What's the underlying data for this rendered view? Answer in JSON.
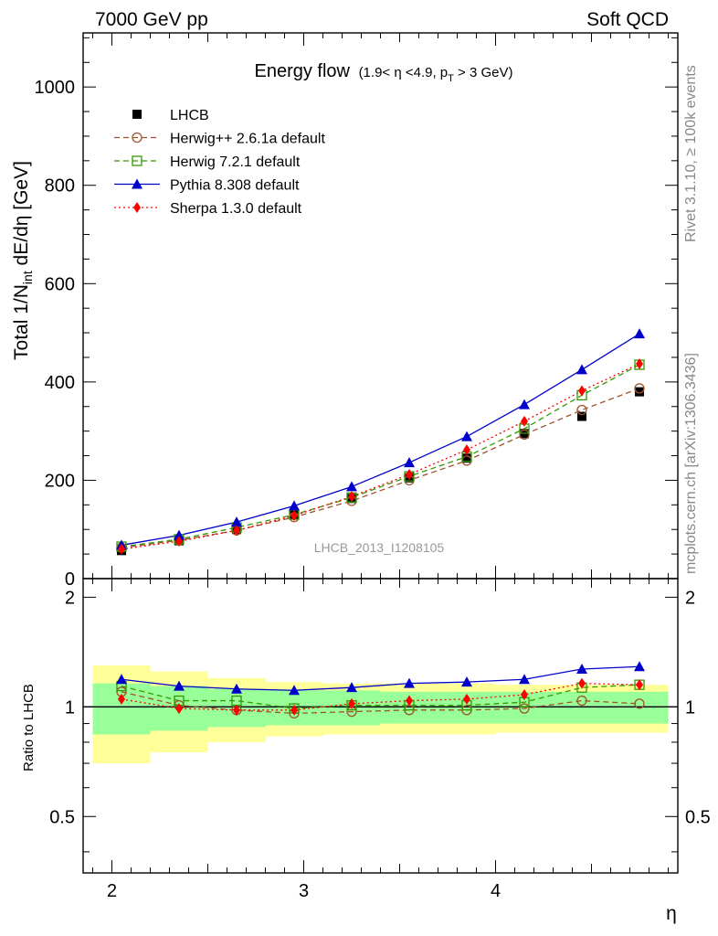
{
  "header": {
    "left": "7000 GeV pp",
    "right": "Soft QCD"
  },
  "side_labels": {
    "rivet": "Rivet 3.1.10, ≥ 100k events",
    "mcplots": "mcplots.cern.ch [arXiv:1306.3436]"
  },
  "title": {
    "main": "Energy flow",
    "condition_prefix": "(1.9< η <4.9, p",
    "condition_sub": "T",
    "condition_suffix": " > 3 GeV)"
  },
  "analysis_id": "LHCB_2013_I1208105",
  "chart_data": {
    "type": "line",
    "xlabel": "η",
    "ylabel": "Total 1/N",
    "ylabel_sub": "int",
    "ylabel_suffix": " dE/dη [GeV]",
    "ratio_ylabel": "Ratio to LHCB",
    "xlim": [
      1.85,
      4.95
    ],
    "ylim": [
      0,
      1110
    ],
    "ratio_ylim": [
      0.35,
      2.25
    ],
    "x_ticks": [
      "2",
      "3",
      "4"
    ],
    "y_ticks": [
      "0",
      "200",
      "400",
      "600",
      "800",
      "1000"
    ],
    "ratio_y_ticks": [
      "0.5",
      "1",
      "2"
    ],
    "x": [
      2.05,
      2.35,
      2.65,
      2.95,
      3.25,
      3.55,
      3.85,
      4.15,
      4.45,
      4.75
    ],
    "bands": {
      "green": [
        0.16,
        0.14,
        0.12,
        0.11,
        0.11,
        0.1,
        0.1,
        0.1,
        0.1,
        0.1
      ],
      "yellow": [
        0.3,
        0.25,
        0.2,
        0.17,
        0.16,
        0.16,
        0.16,
        0.15,
        0.15,
        0.15
      ]
    },
    "series": [
      {
        "name": "LHCB",
        "color": "#000000",
        "marker": "square-filled",
        "dash": "",
        "values": [
          57,
          77,
          100,
          130,
          163,
          205,
          245,
          295,
          330,
          380
        ],
        "ratio": [
          1,
          1,
          1,
          1,
          1,
          1,
          1,
          1,
          1,
          1
        ]
      },
      {
        "name": "Herwig++ 2.6.1a default",
        "color": "#a0522d",
        "marker": "circle-open",
        "dash": "6,4",
        "values": [
          63,
          78,
          98,
          125,
          158,
          200,
          240,
          293,
          343,
          387
        ],
        "ratio": [
          1.1,
          1.01,
          0.98,
          0.96,
          0.97,
          0.98,
          0.98,
          0.99,
          1.04,
          1.02
        ]
      },
      {
        "name": "Herwig 7.2.1 default",
        "color": "#339900",
        "marker": "square-open",
        "dash": "6,4",
        "values": [
          65,
          80,
          104,
          130,
          165,
          208,
          248,
          305,
          373,
          435
        ],
        "ratio": [
          1.14,
          1.04,
          1.04,
          0.99,
          1.01,
          1.01,
          1.01,
          1.03,
          1.13,
          1.15
        ]
      },
      {
        "name": "Pythia 8.308 default",
        "color": "#0000cc",
        "marker": "triangle-filled",
        "dash": "",
        "values": [
          68,
          88,
          115,
          148,
          187,
          236,
          289,
          354,
          425,
          498
        ],
        "ratio": [
          1.19,
          1.14,
          1.12,
          1.11,
          1.13,
          1.16,
          1.17,
          1.19,
          1.27,
          1.29
        ]
      },
      {
        "name": "Sherpa 1.3.0 default",
        "color": "#ff0000",
        "marker": "diamond-filled",
        "dash": "2,3",
        "values": [
          60,
          76,
          98,
          128,
          167,
          212,
          262,
          320,
          382,
          437
        ],
        "ratio": [
          1.05,
          0.99,
          0.98,
          0.98,
          1.02,
          1.04,
          1.05,
          1.08,
          1.16,
          1.15
        ]
      }
    ]
  }
}
